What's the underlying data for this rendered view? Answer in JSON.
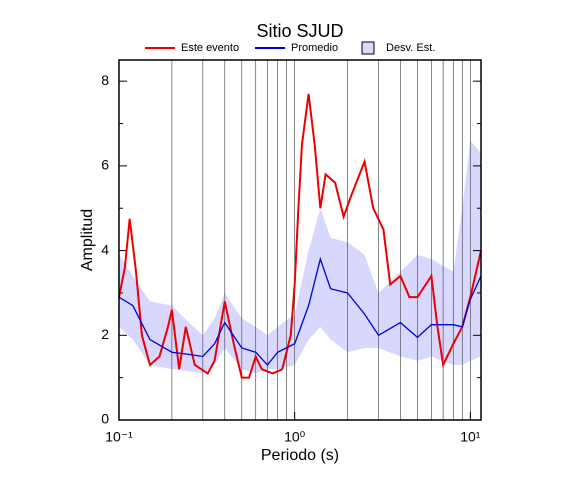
{
  "chart_data": {
    "type": "line",
    "title": "Sitio SJUD",
    "xlabel": "Periodo (s)",
    "ylabel": "Amplitud",
    "xscale": "log",
    "xlim": [
      0.1,
      11.5
    ],
    "ylim": [
      0,
      8.5
    ],
    "xticks": [
      {
        "value": 0.1,
        "label": "10⁻¹"
      },
      {
        "value": 1,
        "label": "10⁰"
      },
      {
        "value": 10,
        "label": "10¹"
      }
    ],
    "xgrid": [
      0.2,
      0.3,
      0.4,
      0.5,
      0.6,
      0.7,
      0.8,
      0.9,
      1,
      2,
      3,
      4,
      5,
      6,
      7,
      8,
      9,
      10
    ],
    "yticks": [
      0,
      2,
      4,
      6,
      8
    ],
    "yminor": [
      1,
      3,
      5,
      7
    ],
    "series": [
      {
        "name": "Este evento",
        "color": "#ee0000",
        "x": [
          0.1,
          0.108,
          0.115,
          0.125,
          0.135,
          0.15,
          0.17,
          0.19,
          0.2,
          0.22,
          0.24,
          0.27,
          0.32,
          0.35,
          0.4,
          0.45,
          0.5,
          0.55,
          0.6,
          0.65,
          0.75,
          0.85,
          0.95,
          1.0,
          1.05,
          1.1,
          1.2,
          1.3,
          1.4,
          1.5,
          1.7,
          1.9,
          2.1,
          2.5,
          2.8,
          3.2,
          3.5,
          4,
          4.5,
          5,
          6,
          6.5,
          7,
          8,
          9,
          10,
          11.5
        ],
        "values": [
          2.9,
          3.6,
          4.75,
          3.5,
          2.0,
          1.3,
          1.5,
          2.2,
          2.6,
          1.2,
          2.2,
          1.3,
          1.1,
          1.4,
          2.8,
          1.8,
          1.0,
          1.0,
          1.5,
          1.2,
          1.1,
          1.2,
          2.0,
          3.2,
          5.0,
          6.5,
          7.7,
          6.5,
          5.0,
          5.8,
          5.6,
          4.8,
          5.3,
          6.1,
          5.0,
          4.5,
          3.2,
          3.4,
          2.9,
          2.9,
          3.4,
          2.2,
          1.3,
          1.8,
          2.2,
          2.9,
          4.0
        ]
      },
      {
        "name": "Promedio",
        "color": "#0000dd",
        "x": [
          0.1,
          0.12,
          0.15,
          0.2,
          0.25,
          0.3,
          0.35,
          0.4,
          0.5,
          0.6,
          0.7,
          0.8,
          1.0,
          1.2,
          1.4,
          1.6,
          2.0,
          2.5,
          3.0,
          4.0,
          5.0,
          6.0,
          8.0,
          9.0,
          10,
          11.5
        ],
        "values": [
          2.9,
          2.7,
          1.9,
          1.6,
          1.55,
          1.5,
          1.8,
          2.3,
          1.7,
          1.6,
          1.3,
          1.6,
          1.8,
          2.7,
          3.8,
          3.1,
          3.0,
          2.5,
          2.0,
          2.3,
          1.95,
          2.25,
          2.25,
          2.2,
          2.85,
          3.4
        ]
      },
      {
        "name": "Desv. Est.",
        "color": "#d8d8ff",
        "x": [
          0.1,
          0.12,
          0.15,
          0.2,
          0.25,
          0.3,
          0.35,
          0.4,
          0.5,
          0.6,
          0.7,
          0.8,
          1.0,
          1.2,
          1.4,
          1.6,
          2.0,
          2.5,
          3.0,
          4.0,
          5.0,
          6.0,
          8.0,
          9.0,
          10,
          11.5
        ],
        "lower": [
          2.2,
          1.9,
          1.3,
          1.2,
          1.15,
          1.1,
          1.3,
          1.7,
          1.2,
          1.1,
          1.2,
          1.2,
          1.3,
          1.9,
          2.2,
          1.9,
          1.6,
          1.7,
          1.7,
          1.5,
          1.4,
          1.5,
          1.3,
          1.3,
          1.4,
          1.5
        ],
        "upper": [
          3.9,
          3.4,
          2.8,
          2.7,
          2.3,
          2.0,
          2.4,
          3.0,
          2.4,
          2.2,
          2.0,
          2.2,
          2.5,
          4.0,
          5.0,
          4.3,
          4.2,
          3.9,
          3.0,
          3.5,
          3.9,
          3.8,
          3.5,
          5.0,
          6.6,
          6.3
        ]
      }
    ]
  }
}
